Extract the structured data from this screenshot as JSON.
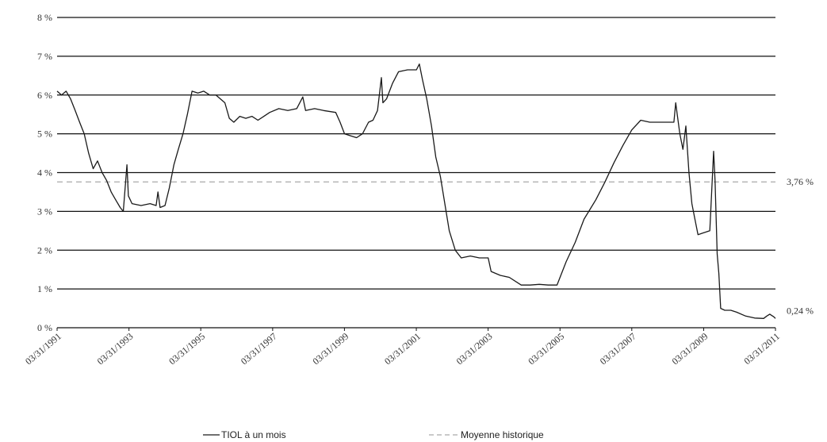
{
  "chart_data": {
    "type": "line",
    "title": "",
    "xlabel": "",
    "ylabel": "",
    "x_range": [
      "03/31/1991",
      "03/31/2011"
    ],
    "ylim": [
      0,
      8
    ],
    "y_ticks": [
      0,
      1,
      2,
      3,
      4,
      5,
      6,
      7,
      8
    ],
    "y_tick_labels": [
      "0 %",
      "1 %",
      "2 %",
      "3 %",
      "4 %",
      "5 %",
      "6 %",
      "7 %",
      "8 %"
    ],
    "x_tick_labels": [
      "03/31/1991",
      "03/31/1993",
      "03/31/1995",
      "03/31/1997",
      "03/31/1999",
      "03/31/2001",
      "03/31/2003",
      "03/31/2005",
      "03/31/2007",
      "03/31/2009",
      "03/31/2011"
    ],
    "grid": "horizontal",
    "legend_position": "bottom",
    "series": [
      {
        "name": "TIOL à un mois",
        "color": "#1a1a1a",
        "style": "solid",
        "points": [
          [
            "1991-03-31",
            6.1
          ],
          [
            "1991-05-15",
            6.0
          ],
          [
            "1991-07-01",
            6.1
          ],
          [
            "1991-08-15",
            5.9
          ],
          [
            "1991-10-01",
            5.6
          ],
          [
            "1991-11-15",
            5.3
          ],
          [
            "1992-01-01",
            5.0
          ],
          [
            "1992-02-15",
            4.5
          ],
          [
            "1992-04-01",
            4.1
          ],
          [
            "1992-05-15",
            4.3
          ],
          [
            "1992-07-01",
            4.0
          ],
          [
            "1992-08-15",
            3.8
          ],
          [
            "1992-10-01",
            3.5
          ],
          [
            "1992-11-15",
            3.3
          ],
          [
            "1993-01-01",
            3.1
          ],
          [
            "1993-02-01",
            3.0
          ],
          [
            "1993-02-20",
            3.6
          ],
          [
            "1993-03-10",
            4.2
          ],
          [
            "1993-03-25",
            3.4
          ],
          [
            "1993-05-01",
            3.2
          ],
          [
            "1993-08-01",
            3.15
          ],
          [
            "1993-11-01",
            3.2
          ],
          [
            "1994-01-01",
            3.15
          ],
          [
            "1994-01-20",
            3.5
          ],
          [
            "1994-02-10",
            3.1
          ],
          [
            "1994-04-01",
            3.15
          ],
          [
            "1994-05-15",
            3.6
          ],
          [
            "1994-07-01",
            4.2
          ],
          [
            "1994-08-15",
            4.6
          ],
          [
            "1994-10-01",
            5.0
          ],
          [
            "1994-11-15",
            5.5
          ],
          [
            "1995-01-01",
            6.1
          ],
          [
            "1995-03-01",
            6.05
          ],
          [
            "1995-05-01",
            6.1
          ],
          [
            "1995-07-01",
            6.0
          ],
          [
            "1995-09-01",
            6.0
          ],
          [
            "1995-12-01",
            5.8
          ],
          [
            "1996-01-15",
            5.4
          ],
          [
            "1996-03-01",
            5.3
          ],
          [
            "1996-05-01",
            5.45
          ],
          [
            "1996-07-01",
            5.4
          ],
          [
            "1996-09-01",
            5.45
          ],
          [
            "1996-11-01",
            5.35
          ],
          [
            "1997-01-01",
            5.45
          ],
          [
            "1997-03-01",
            5.55
          ],
          [
            "1997-06-01",
            5.65
          ],
          [
            "1997-09-01",
            5.6
          ],
          [
            "1997-12-01",
            5.65
          ],
          [
            "1998-02-01",
            5.95
          ],
          [
            "1998-03-01",
            5.6
          ],
          [
            "1998-06-01",
            5.65
          ],
          [
            "1998-09-01",
            5.6
          ],
          [
            "1999-01-01",
            5.55
          ],
          [
            "1999-02-15",
            5.3
          ],
          [
            "1999-04-01",
            5.0
          ],
          [
            "1999-06-01",
            4.95
          ],
          [
            "1999-08-01",
            4.9
          ],
          [
            "1999-10-01",
            5.0
          ],
          [
            "1999-12-01",
            5.3
          ],
          [
            "2000-01-15",
            5.35
          ],
          [
            "2000-03-01",
            5.6
          ],
          [
            "2000-04-10",
            6.45
          ],
          [
            "2000-04-25",
            5.8
          ],
          [
            "2000-06-01",
            5.9
          ],
          [
            "2000-08-01",
            6.3
          ],
          [
            "2000-10-01",
            6.6
          ],
          [
            "2001-01-01",
            6.65
          ],
          [
            "2001-04-01",
            6.65
          ],
          [
            "2001-05-01",
            6.8
          ],
          [
            "2001-06-01",
            6.4
          ],
          [
            "2001-07-15",
            5.9
          ],
          [
            "2001-09-01",
            5.2
          ],
          [
            "2001-10-15",
            4.4
          ],
          [
            "2001-12-01",
            3.9
          ],
          [
            "2002-01-15",
            3.2
          ],
          [
            "2002-03-01",
            2.5
          ],
          [
            "2002-05-01",
            2.0
          ],
          [
            "2002-07-01",
            1.8
          ],
          [
            "2002-10-01",
            1.85
          ],
          [
            "2003-01-01",
            1.8
          ],
          [
            "2003-04-01",
            1.8
          ],
          [
            "2003-05-01",
            1.45
          ],
          [
            "2003-08-01",
            1.35
          ],
          [
            "2003-11-01",
            1.3
          ],
          [
            "2004-03-01",
            1.1
          ],
          [
            "2004-06-01",
            1.1
          ],
          [
            "2004-09-01",
            1.12
          ],
          [
            "2004-12-01",
            1.1
          ],
          [
            "2005-03-01",
            1.1
          ],
          [
            "2005-06-01",
            1.7
          ],
          [
            "2005-09-01",
            2.2
          ],
          [
            "2005-12-01",
            2.8
          ],
          [
            "2006-03-31",
            3.3
          ],
          [
            "2006-06-30",
            3.75
          ],
          [
            "2006-09-30",
            4.25
          ],
          [
            "2006-12-31",
            4.7
          ],
          [
            "2007-03-31",
            5.1
          ],
          [
            "2007-06-30",
            5.35
          ],
          [
            "2007-09-30",
            5.3
          ],
          [
            "2007-12-31",
            5.3
          ],
          [
            "2008-03-31",
            5.3
          ],
          [
            "2008-06-01",
            5.3
          ],
          [
            "2008-06-20",
            5.8
          ],
          [
            "2008-07-05",
            5.5
          ],
          [
            "2008-08-01",
            5.0
          ],
          [
            "2008-09-01",
            4.6
          ],
          [
            "2008-10-01",
            5.2
          ],
          [
            "2008-11-01",
            4.0
          ],
          [
            "2008-12-01",
            3.2
          ],
          [
            "2009-01-01",
            2.8
          ],
          [
            "2009-02-01",
            2.4
          ],
          [
            "2009-04-01",
            2.45
          ],
          [
            "2009-06-01",
            2.5
          ],
          [
            "2009-07-10",
            4.55
          ],
          [
            "2009-07-25",
            3.8
          ],
          [
            "2009-08-15",
            1.9
          ],
          [
            "2009-09-01",
            1.4
          ],
          [
            "2009-09-20",
            0.5
          ],
          [
            "2009-11-01",
            0.45
          ],
          [
            "2010-01-01",
            0.45
          ],
          [
            "2010-03-01",
            0.4
          ],
          [
            "2010-06-01",
            0.3
          ],
          [
            "2010-09-01",
            0.25
          ],
          [
            "2010-12-01",
            0.24
          ],
          [
            "2011-01-01",
            0.3
          ],
          [
            "2011-02-01",
            0.35
          ],
          [
            "2011-03-15",
            0.28
          ],
          [
            "2011-03-31",
            0.24
          ]
        ],
        "end_label": "0,24 %"
      },
      {
        "name": "Moyenne historique",
        "color": "#aaaaaa",
        "style": "dashed",
        "value": 3.76,
        "end_label": "3,76 %"
      }
    ]
  }
}
